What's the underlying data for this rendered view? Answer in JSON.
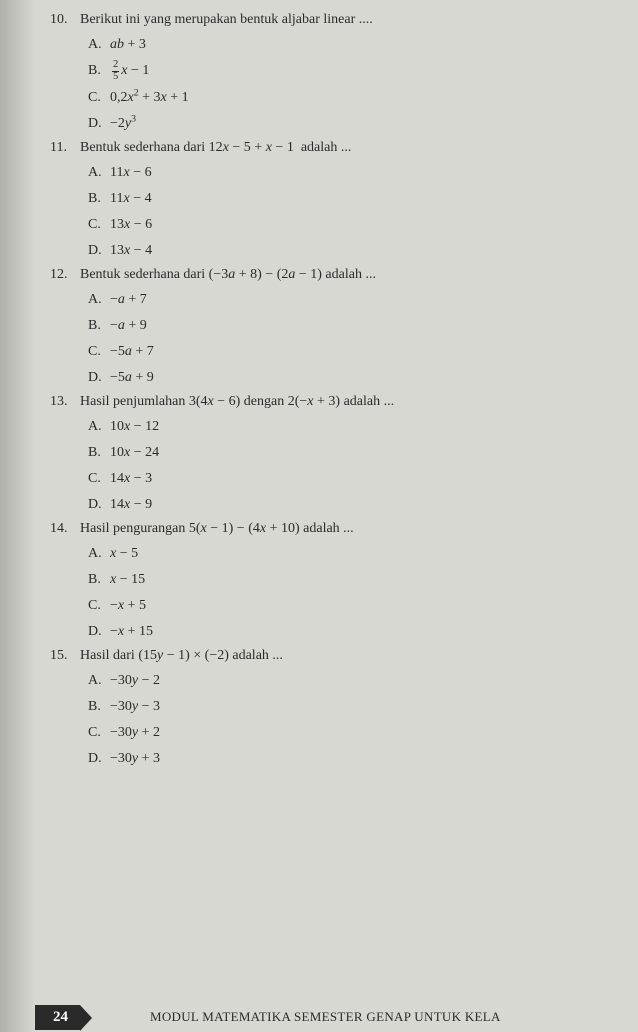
{
  "questions": [
    {
      "num": "10.",
      "text": "Berikut ini yang merupakan bentuk aljabar linear ....",
      "options": [
        {
          "letter": "A.",
          "html": "<span class='math'>ab</span> + 3"
        },
        {
          "letter": "B.",
          "html": "<span class='frac'><span class='num'>2</span><span class='den'>5</span></span><span class='math'>x</span> − 1"
        },
        {
          "letter": "C.",
          "html": "0,2<span class='math'>x</span><sup>2</sup> + 3<span class='math'>x</span> + 1"
        },
        {
          "letter": "D.",
          "html": "−2<span class='math'>y</span><sup>3</sup>"
        }
      ]
    },
    {
      "num": "11.",
      "text": "Bentuk sederhana dari 12<span class='math'>x</span> − 5 + <span class='math'>x</span> − 1 &nbsp;adalah ...",
      "options": [
        {
          "letter": "A.",
          "html": "11<span class='math'>x</span> − 6"
        },
        {
          "letter": "B.",
          "html": "11<span class='math'>x</span> − 4"
        },
        {
          "letter": "C.",
          "html": "13<span class='math'>x</span> − 6"
        },
        {
          "letter": "D.",
          "html": "13<span class='math'>x</span> − 4"
        }
      ]
    },
    {
      "num": "12.",
      "text": "Bentuk sederhana dari (−3<span class='math'>a</span> + 8) − (2<span class='math'>a</span> − 1) adalah ...",
      "options": [
        {
          "letter": "A.",
          "html": "−<span class='math'>a</span> + 7"
        },
        {
          "letter": "B.",
          "html": "−<span class='math'>a</span> + 9"
        },
        {
          "letter": "C.",
          "html": "−5<span class='math'>a</span> + 7"
        },
        {
          "letter": "D.",
          "html": "−5<span class='math'>a</span> + 9"
        }
      ]
    },
    {
      "num": "13.",
      "text": "Hasil penjumlahan 3(4<span class='math'>x</span> − 6) dengan 2(−<span class='math'>x</span> + 3) adalah ...",
      "options": [
        {
          "letter": "A.",
          "html": "10<span class='math'>x</span> − 12"
        },
        {
          "letter": "B.",
          "html": "10<span class='math'>x</span> − 24"
        },
        {
          "letter": "C.",
          "html": "14<span class='math'>x</span> − 3"
        },
        {
          "letter": "D.",
          "html": "14<span class='math'>x</span> − 9"
        }
      ]
    },
    {
      "num": "14.",
      "text": "Hasil pengurangan 5(<span class='math'>x</span> − 1) − (4<span class='math'>x</span> + 10) adalah ...",
      "options": [
        {
          "letter": "A.",
          "html": "<span class='math'>x</span> − 5"
        },
        {
          "letter": "B.",
          "html": "<span class='math'>x</span> − 15"
        },
        {
          "letter": "C.",
          "html": "−<span class='math'>x</span> + 5"
        },
        {
          "letter": "D.",
          "html": "−<span class='math'>x</span> + 15"
        }
      ]
    },
    {
      "num": "15.",
      "text": "Hasil dari (15<span class='math'>y</span> − 1) × (−2) adalah ...",
      "options": [
        {
          "letter": "A.",
          "html": "−30<span class='math'>y</span> − 2"
        },
        {
          "letter": "B.",
          "html": "−30<span class='math'>y</span> − 3"
        },
        {
          "letter": "C.",
          "html": "−30<span class='math'>y</span> + 2"
        },
        {
          "letter": "D.",
          "html": "−30<span class='math'>y</span> + 3"
        }
      ]
    }
  ],
  "footer": {
    "page": "24",
    "text": "MODUL MATEMATIKA SEMESTER GENAP UNTUK KELA"
  }
}
